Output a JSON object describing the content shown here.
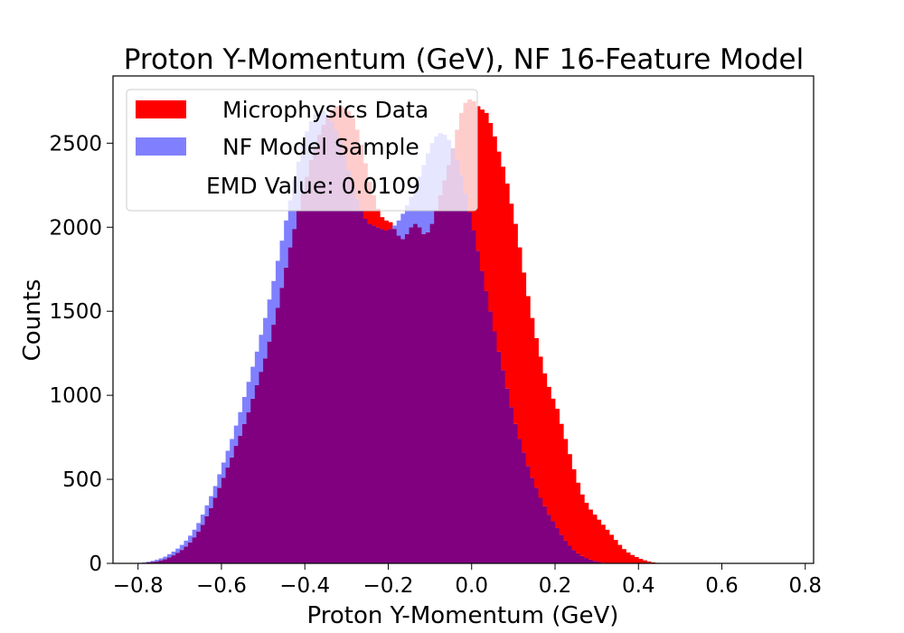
{
  "chart_data": {
    "type": "histogram",
    "title": "Proton Y-Momentum (GeV), NF 16-Feature Model",
    "xlabel": "Proton Y-Momentum (GeV)",
    "ylabel": "Counts",
    "xlim": [
      -0.86,
      0.82
    ],
    "ylim": [
      0,
      2900
    ],
    "xticks": [
      -0.8,
      -0.6,
      -0.4,
      -0.2,
      0.0,
      0.2,
      0.4,
      0.6,
      0.8
    ],
    "xtick_labels": [
      "−0.8",
      "−0.6",
      "−0.4",
      "−0.2",
      "0.0",
      "0.2",
      "0.4",
      "0.6",
      "0.8"
    ],
    "yticks": [
      0,
      500,
      1000,
      1500,
      2000,
      2500
    ],
    "ytick_labels": [
      "0",
      "500",
      "1000",
      "1500",
      "2000",
      "2500"
    ],
    "grid": false,
    "legend": {
      "placement": "top-left",
      "entries": [
        "Microphysics Data",
        "NF Model Sample",
        "EMD Value: 0.0109"
      ]
    },
    "bin_width": 0.01,
    "bin_centers": [
      -0.795,
      -0.785,
      -0.775,
      -0.765,
      -0.755,
      -0.745,
      -0.735,
      -0.725,
      -0.715,
      -0.705,
      -0.695,
      -0.685,
      -0.675,
      -0.665,
      -0.655,
      -0.645,
      -0.635,
      -0.625,
      -0.615,
      -0.605,
      -0.595,
      -0.585,
      -0.575,
      -0.565,
      -0.555,
      -0.545,
      -0.535,
      -0.525,
      -0.515,
      -0.505,
      -0.495,
      -0.485,
      -0.475,
      -0.465,
      -0.455,
      -0.445,
      -0.435,
      -0.425,
      -0.415,
      -0.405,
      -0.395,
      -0.385,
      -0.375,
      -0.365,
      -0.355,
      -0.345,
      -0.335,
      -0.325,
      -0.315,
      -0.305,
      -0.295,
      -0.285,
      -0.275,
      -0.265,
      -0.255,
      -0.245,
      -0.235,
      -0.225,
      -0.215,
      -0.205,
      -0.195,
      -0.185,
      -0.175,
      -0.165,
      -0.155,
      -0.145,
      -0.135,
      -0.125,
      -0.115,
      -0.105,
      -0.095,
      -0.085,
      -0.075,
      -0.065,
      -0.055,
      -0.045,
      -0.035,
      -0.025,
      -0.015,
      -0.005,
      0.005,
      0.015,
      0.025,
      0.035,
      0.045,
      0.055,
      0.065,
      0.075,
      0.085,
      0.095,
      0.105,
      0.115,
      0.125,
      0.135,
      0.145,
      0.155,
      0.165,
      0.175,
      0.185,
      0.195,
      0.205,
      0.215,
      0.225,
      0.235,
      0.245,
      0.255,
      0.265,
      0.275,
      0.285,
      0.295,
      0.305,
      0.315,
      0.325,
      0.335,
      0.345,
      0.355,
      0.365,
      0.375,
      0.385,
      0.395,
      0.405,
      0.415,
      0.425,
      0.435,
      0.445,
      0.455,
      0.465,
      0.475,
      0.485,
      0.495,
      0.505,
      0.515,
      0.525,
      0.535,
      0.545,
      0.555,
      0.565,
      0.575,
      0.585,
      0.595,
      0.605,
      0.615,
      0.625,
      0.635,
      0.645,
      0.655,
      0.665,
      0.675,
      0.685,
      0.695,
      0.705,
      0.715,
      0.725,
      0.735,
      0.745,
      0.755
    ],
    "series": [
      {
        "name": "Microphysics Data",
        "color": "#ff0000",
        "values": [
          2,
          4,
          6,
          8,
          12,
          18,
          25,
          35,
          48,
          62,
          80,
          100,
          125,
          155,
          190,
          230,
          280,
          330,
          390,
          450,
          510,
          570,
          630,
          700,
          760,
          830,
          900,
          980,
          1060,
          1140,
          1220,
          1320,
          1420,
          1520,
          1640,
          1760,
          1880,
          1990,
          2100,
          2200,
          2300,
          2400,
          2480,
          2550,
          2610,
          2660,
          2700,
          2720,
          2720,
          2710,
          2690,
          2650,
          2580,
          2490,
          2380,
          2270,
          2190,
          2110,
          2060,
          2040,
          2030,
          1990,
          1950,
          1930,
          1960,
          2000,
          2020,
          2000,
          1960,
          1970,
          2020,
          2100,
          2190,
          2280,
          2370,
          2470,
          2580,
          2680,
          2740,
          2760,
          2750,
          2720,
          2700,
          2680,
          2620,
          2540,
          2450,
          2360,
          2260,
          2140,
          2020,
          1880,
          1730,
          1590,
          1460,
          1340,
          1230,
          1130,
          1050,
          980,
          920,
          830,
          740,
          650,
          560,
          480,
          410,
          360,
          320,
          290,
          260,
          230,
          200,
          170,
          140,
          110,
          85,
          65,
          50,
          38,
          27,
          18,
          11,
          6,
          3,
          1,
          0,
          0,
          0,
          0,
          0,
          0,
          0,
          0,
          0,
          0,
          0,
          0,
          0,
          0,
          0,
          0,
          0,
          0,
          0,
          0,
          0,
          0,
          0,
          0,
          0,
          0,
          0,
          0,
          0,
          0,
          0,
          0,
          0,
          0,
          0,
          0,
          0,
          0
        ]
      },
      {
        "name": "NF Model Sample",
        "color": "#8080ff",
        "values": [
          3,
          6,
          10,
          15,
          22,
          30,
          40,
          55,
          70,
          88,
          110,
          135,
          165,
          200,
          240,
          290,
          345,
          400,
          460,
          530,
          600,
          670,
          740,
          820,
          900,
          990,
          1080,
          1170,
          1260,
          1360,
          1460,
          1570,
          1680,
          1800,
          1920,
          2040,
          2160,
          2280,
          2390,
          2490,
          2570,
          2630,
          2670,
          2690,
          2690,
          2670,
          2630,
          2580,
          2510,
          2430,
          2340,
          2250,
          2170,
          2100,
          2050,
          2020,
          2010,
          2000,
          1990,
          1980,
          1990,
          2010,
          2040,
          2080,
          2130,
          2180,
          2240,
          2300,
          2370,
          2440,
          2500,
          2540,
          2560,
          2550,
          2520,
          2470,
          2400,
          2310,
          2200,
          2090,
          1980,
          1860,
          1740,
          1620,
          1500,
          1380,
          1260,
          1150,
          1040,
          930,
          830,
          740,
          660,
          580,
          510,
          450,
          390,
          340,
          290,
          250,
          210,
          170,
          135,
          105,
          80,
          60,
          44,
          32,
          22,
          14,
          8,
          4,
          2,
          1,
          0,
          0,
          0,
          0,
          0,
          0,
          0,
          0,
          0,
          0,
          0,
          0,
          0,
          0,
          0,
          0,
          0,
          0,
          0,
          0,
          0,
          0,
          0,
          0,
          0,
          0,
          0,
          0,
          0,
          0,
          0,
          0,
          0,
          0,
          0,
          0,
          0,
          0,
          0,
          0
        ]
      }
    ]
  }
}
